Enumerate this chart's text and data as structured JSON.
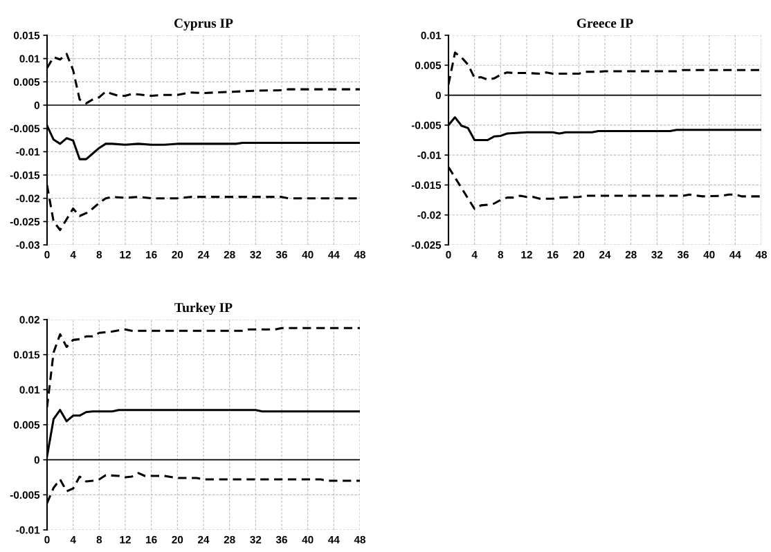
{
  "chart_data": [
    {
      "type": "line",
      "title": "Cyprus IP",
      "xlim": [
        0,
        48
      ],
      "xticks": [
        0,
        4,
        8,
        12,
        16,
        20,
        24,
        28,
        32,
        36,
        40,
        44,
        48
      ],
      "ylim": [
        -0.03,
        0.015
      ],
      "yticks": [
        -0.03,
        -0.025,
        -0.02,
        -0.015,
        -0.01,
        -0.005,
        0,
        0.005,
        0.01,
        0.015
      ],
      "grid": true,
      "ref_lines": [
        {
          "axis": "y",
          "value": 0,
          "color": "#000000"
        }
      ],
      "series": [
        {
          "color": "#000000",
          "line_style": "dashed",
          "x": [
            0,
            1,
            2,
            3,
            4,
            5,
            6,
            7,
            8,
            9,
            10,
            11,
            12,
            13,
            14,
            16,
            18,
            20,
            22,
            24,
            32,
            36,
            37,
            48
          ],
          "values": [
            0.008,
            0.0103,
            0.0098,
            0.011,
            0.0075,
            0.0012,
            0.0004,
            0.0012,
            0.0017,
            0.0029,
            0.0024,
            0.002,
            0.002,
            0.0024,
            0.0023,
            0.002,
            0.0022,
            0.0022,
            0.0027,
            0.0026,
            0.0031,
            0.0032,
            0.0034,
            0.0034
          ]
        },
        {
          "color": "#000000",
          "line_style": "solid",
          "x": [
            0,
            1,
            2,
            3,
            4,
            5,
            6,
            7,
            8,
            9,
            10,
            12,
            14,
            16,
            18,
            20,
            29,
            30,
            48
          ],
          "values": [
            -0.0044,
            -0.0074,
            -0.0083,
            -0.0071,
            -0.0076,
            -0.0116,
            -0.0116,
            -0.0104,
            -0.0092,
            -0.0083,
            -0.0083,
            -0.0085,
            -0.0083,
            -0.0085,
            -0.0085,
            -0.0083,
            -0.0083,
            -0.0081,
            -0.0081
          ]
        },
        {
          "color": "#000000",
          "line_style": "dashed",
          "x": [
            0,
            1,
            2,
            3,
            4,
            5,
            6,
            7,
            8,
            9,
            10,
            12,
            14,
            16,
            20,
            22,
            36,
            37,
            48
          ],
          "values": [
            -0.0172,
            -0.025,
            -0.0268,
            -0.0245,
            -0.0222,
            -0.0238,
            -0.0232,
            -0.0222,
            -0.021,
            -0.02,
            -0.0197,
            -0.0199,
            -0.0197,
            -0.02,
            -0.02,
            -0.0197,
            -0.0197,
            -0.02,
            -0.02
          ]
        }
      ]
    },
    {
      "type": "line",
      "title": "Greece IP",
      "xlim": [
        0,
        48
      ],
      "xticks": [
        0,
        4,
        8,
        12,
        16,
        20,
        24,
        28,
        32,
        36,
        40,
        44,
        48
      ],
      "ylim": [
        -0.025,
        0.01
      ],
      "yticks": [
        -0.025,
        -0.02,
        -0.015,
        -0.01,
        -0.005,
        0,
        0.005,
        0.01
      ],
      "grid": true,
      "ref_lines": [
        {
          "axis": "y",
          "value": 0,
          "color": "#000000"
        }
      ],
      "series": [
        {
          "color": "#000000",
          "line_style": "dashed",
          "x": [
            0,
            1,
            2,
            3,
            4,
            5,
            6,
            7,
            8,
            9,
            10,
            12,
            14,
            15,
            16,
            20,
            21,
            23,
            24,
            35,
            36,
            48
          ],
          "values": [
            0.0018,
            0.0071,
            0.0063,
            0.0051,
            0.0029,
            0.003,
            0.0026,
            0.0028,
            0.0034,
            0.0038,
            0.0037,
            0.0037,
            0.0036,
            0.0038,
            0.0036,
            0.0036,
            0.0039,
            0.0039,
            0.004,
            0.004,
            0.0042,
            0.0042
          ]
        },
        {
          "color": "#000000",
          "line_style": "solid",
          "x": [
            0,
            1,
            2,
            3,
            4,
            6,
            7,
            8,
            9,
            12,
            16,
            17,
            18,
            22,
            23,
            34,
            35,
            48
          ],
          "values": [
            -0.005,
            -0.0037,
            -0.0051,
            -0.0055,
            -0.0075,
            -0.0075,
            -0.0069,
            -0.0068,
            -0.0064,
            -0.0062,
            -0.0062,
            -0.0064,
            -0.0062,
            -0.0062,
            -0.006,
            -0.006,
            -0.0058,
            -0.0058
          ]
        },
        {
          "color": "#000000",
          "line_style": "dashed",
          "x": [
            0,
            4,
            5,
            6,
            7,
            8,
            9,
            10,
            11,
            12,
            13,
            14,
            16,
            17,
            20,
            21,
            36,
            37,
            39,
            42,
            43,
            44,
            45,
            48
          ],
          "values": [
            -0.012,
            -0.019,
            -0.0184,
            -0.0183,
            -0.0181,
            -0.0175,
            -0.0171,
            -0.0171,
            -0.0168,
            -0.017,
            -0.017,
            -0.0173,
            -0.0173,
            -0.0171,
            -0.017,
            -0.0168,
            -0.0168,
            -0.0166,
            -0.0169,
            -0.0168,
            -0.0166,
            -0.0166,
            -0.0169,
            -0.0169
          ]
        }
      ]
    },
    {
      "type": "line",
      "title": "Turkey IP",
      "xlim": [
        0,
        48
      ],
      "xticks": [
        0,
        4,
        8,
        12,
        16,
        20,
        24,
        28,
        32,
        36,
        40,
        44,
        48
      ],
      "ylim": [
        -0.01,
        0.02
      ],
      "yticks": [
        -0.01,
        -0.005,
        0,
        0.005,
        0.01,
        0.015,
        0.02
      ],
      "grid": true,
      "ref_lines": [
        {
          "axis": "y",
          "value": 0,
          "color": "#000000"
        }
      ],
      "series": [
        {
          "color": "#000000",
          "line_style": "dashed",
          "x": [
            0,
            1,
            2,
            3,
            4,
            5,
            6,
            7,
            8,
            10,
            12,
            13,
            30,
            31,
            35,
            36,
            48
          ],
          "values": [
            0.0075,
            0.0153,
            0.0179,
            0.0161,
            0.0171,
            0.0172,
            0.0176,
            0.0176,
            0.0181,
            0.0183,
            0.0186,
            0.0184,
            0.0184,
            0.0186,
            0.0186,
            0.0188,
            0.0188
          ]
        },
        {
          "color": "#000000",
          "line_style": "solid",
          "x": [
            0,
            1,
            2,
            3,
            4,
            5,
            6,
            7,
            10,
            11,
            32,
            33,
            48
          ],
          "values": [
            0.0005,
            0.0058,
            0.0071,
            0.0055,
            0.0063,
            0.0063,
            0.0068,
            0.0069,
            0.0069,
            0.0071,
            0.0071,
            0.0069,
            0.0069
          ]
        },
        {
          "color": "#000000",
          "line_style": "dashed",
          "x": [
            0,
            1,
            2,
            3,
            4,
            5,
            6,
            7,
            8,
            9,
            11,
            12,
            13,
            14,
            15,
            18,
            20,
            23,
            24,
            42,
            43,
            48
          ],
          "values": [
            -0.0062,
            -0.004,
            -0.0028,
            -0.0045,
            -0.0041,
            -0.0024,
            -0.0031,
            -0.003,
            -0.0028,
            -0.0022,
            -0.0023,
            -0.0025,
            -0.0024,
            -0.0019,
            -0.0023,
            -0.0023,
            -0.0026,
            -0.0026,
            -0.0028,
            -0.0028,
            -0.003,
            -0.003
          ]
        }
      ]
    }
  ]
}
